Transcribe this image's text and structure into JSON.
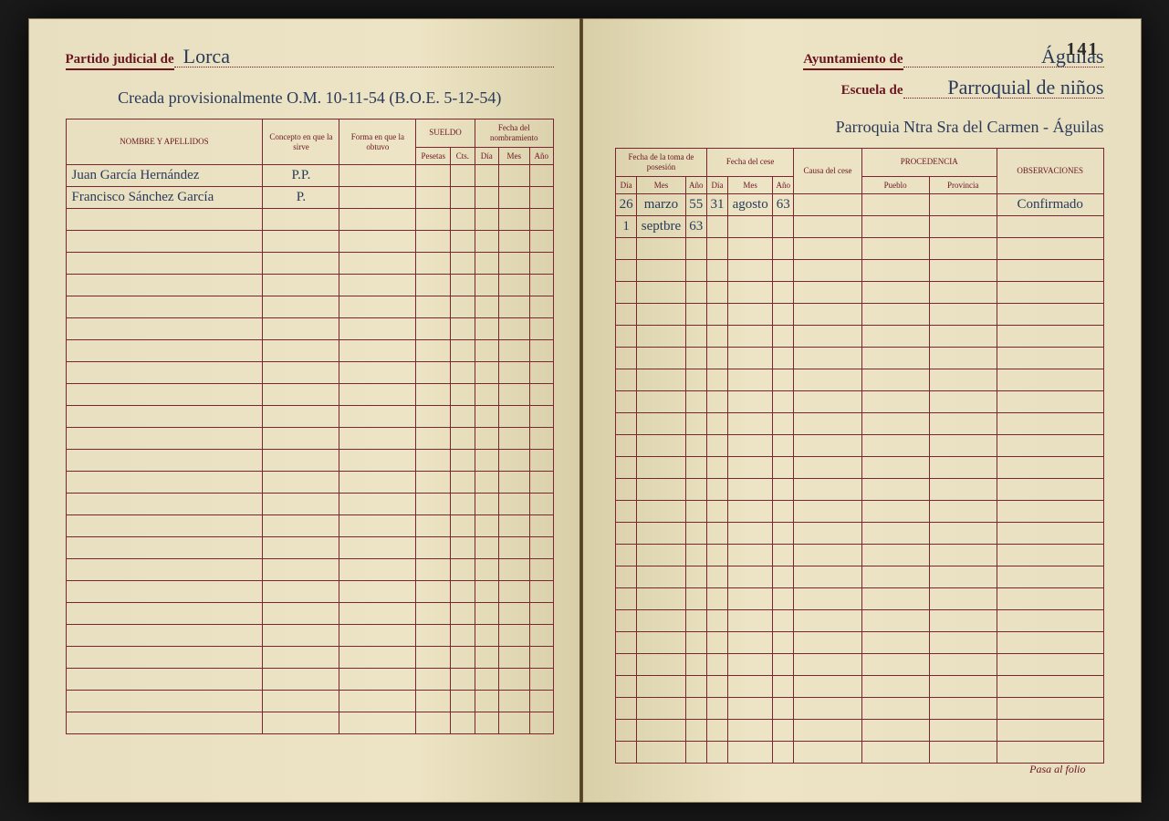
{
  "page_number": "141",
  "left": {
    "header_label": "Partido judicial de",
    "header_value": "Lorca",
    "subheader": "Creada provisionalmente O.M. 10-11-54 (B.O.E. 5-12-54)",
    "columns": {
      "nombre": "NOMBRE Y APELLIDOS",
      "concepto": "Concepto en que la sirve",
      "forma": "Forma en que la obtuvo",
      "sueldo": "SUELDO",
      "pesetas": "Pesetas",
      "cts": "Cts.",
      "fecha_nomb": "Fecha del nombramiento",
      "dia": "Día",
      "mes": "Mes",
      "ano": "Año"
    },
    "rows": [
      {
        "nombre": "Juan García Hernández",
        "concepto": "P.P."
      },
      {
        "nombre": "Francisco Sánchez García",
        "concepto": "P."
      }
    ]
  },
  "right": {
    "ayunt_label": "Ayuntamiento de",
    "ayunt_value": "Águilas",
    "escuela_label": "Escuela de",
    "escuela_value": "Parroquial de niños",
    "subheader": "Parroquia Ntra Sra del Carmen - Águilas",
    "columns": {
      "fecha_pos": "Fecha de la toma de posesión",
      "fecha_cese": "Fecha del cese",
      "causa": "Causa del cese",
      "procedencia": "PROCEDENCIA",
      "pueblo": "Pueblo",
      "provincia": "Provincia",
      "obs": "OBSERVACIONES",
      "dia": "Día",
      "mes": "Mes",
      "ano": "Año"
    },
    "rows": [
      {
        "pos_dia": "26",
        "pos_mes": "marzo",
        "pos_ano": "55",
        "cese_dia": "31",
        "cese_mes": "agosto",
        "cese_ano": "63",
        "obs": "Confirmado"
      },
      {
        "pos_dia": "1",
        "pos_mes": "septbre",
        "pos_ano": "63"
      }
    ],
    "footer": "Pasa al folio"
  },
  "empty_rows": 24,
  "colors": {
    "ink_red": "#6a1520",
    "ink_blue": "#2a3a5a",
    "paper": "#e8dfc0"
  }
}
